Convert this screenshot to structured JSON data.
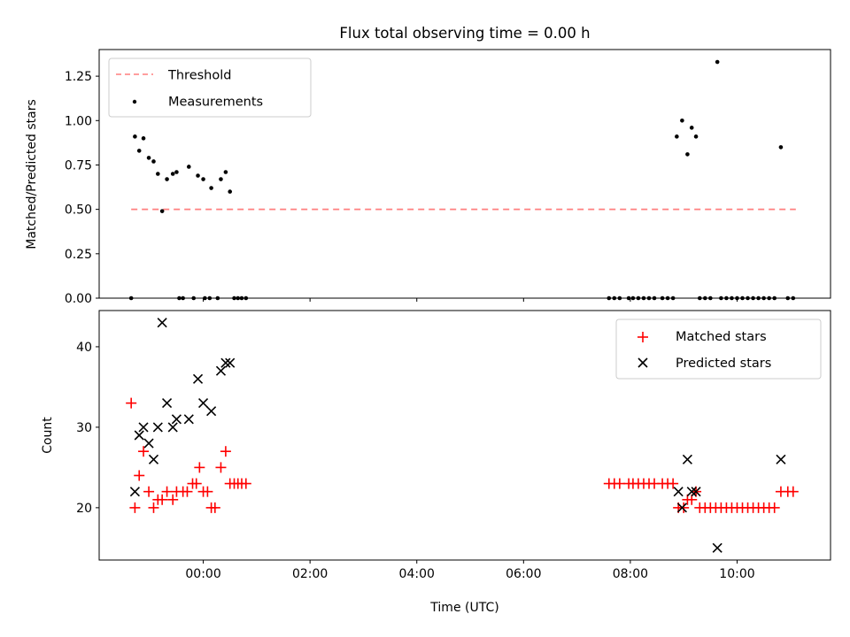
{
  "chart_data": [
    {
      "type": "scatter",
      "title": "Flux total observing time = 0.00 h",
      "xlabel": "",
      "ylabel": "Matched/Predicted stars",
      "xlim": [
        -1.95,
        11.75
      ],
      "ylim": [
        0,
        1.4
      ],
      "y_ticks": [
        "0.00",
        "0.25",
        "0.50",
        "0.75",
        "1.00",
        "1.25"
      ],
      "x_ticks": [
        "00:00",
        "02:00",
        "04:00",
        "06:00",
        "08:00",
        "10:00"
      ],
      "legend": {
        "position": "upper left",
        "entries": [
          "Threshold",
          "Measurements"
        ]
      },
      "threshold": {
        "name": "Threshold",
        "value": 0.5,
        "x_start": -1.35,
        "x_end": 11.1,
        "color": "#ff7f7f"
      },
      "series": [
        {
          "name": "Measurements",
          "color": "#000000",
          "points": [
            [
              -1.35,
              0.0
            ],
            [
              -1.28,
              0.91
            ],
            [
              -1.2,
              0.83
            ],
            [
              -1.12,
              0.9
            ],
            [
              -1.02,
              0.79
            ],
            [
              -0.93,
              0.77
            ],
            [
              -0.85,
              0.7
            ],
            [
              -0.77,
              0.49
            ],
            [
              -0.68,
              0.67
            ],
            [
              -0.57,
              0.7
            ],
            [
              -0.5,
              0.71
            ],
            [
              -0.45,
              0.0
            ],
            [
              -0.38,
              0.0
            ],
            [
              -0.27,
              0.74
            ],
            [
              -0.18,
              0.0
            ],
            [
              -0.1,
              0.69
            ],
            [
              0.0,
              0.67
            ],
            [
              0.03,
              0.0
            ],
            [
              0.12,
              0.0
            ],
            [
              0.15,
              0.62
            ],
            [
              0.27,
              0.0
            ],
            [
              0.33,
              0.67
            ],
            [
              0.42,
              0.71
            ],
            [
              0.5,
              0.6
            ],
            [
              0.58,
              0.0
            ],
            [
              0.65,
              0.0
            ],
            [
              0.72,
              0.0
            ],
            [
              0.8,
              0.0
            ],
            [
              7.6,
              0.0
            ],
            [
              7.7,
              0.0
            ],
            [
              7.8,
              0.0
            ],
            [
              7.97,
              0.0
            ],
            [
              8.05,
              0.0
            ],
            [
              8.15,
              0.0
            ],
            [
              8.25,
              0.0
            ],
            [
              8.35,
              0.0
            ],
            [
              8.45,
              0.0
            ],
            [
              8.6,
              0.0
            ],
            [
              8.7,
              0.0
            ],
            [
              8.8,
              0.0
            ],
            [
              8.87,
              0.91
            ],
            [
              8.97,
              1.0
            ],
            [
              9.07,
              0.81
            ],
            [
              9.15,
              0.96
            ],
            [
              9.23,
              0.91
            ],
            [
              9.3,
              0.0
            ],
            [
              9.4,
              0.0
            ],
            [
              9.5,
              0.0
            ],
            [
              9.63,
              1.33
            ],
            [
              9.7,
              0.0
            ],
            [
              9.8,
              0.0
            ],
            [
              9.9,
              0.0
            ],
            [
              10.0,
              0.0
            ],
            [
              10.1,
              0.0
            ],
            [
              10.2,
              0.0
            ],
            [
              10.3,
              0.0
            ],
            [
              10.4,
              0.0
            ],
            [
              10.5,
              0.0
            ],
            [
              10.6,
              0.0
            ],
            [
              10.7,
              0.0
            ],
            [
              10.82,
              0.85
            ],
            [
              10.95,
              0.0
            ],
            [
              11.05,
              0.0
            ]
          ]
        }
      ]
    },
    {
      "type": "scatter",
      "title": "",
      "xlabel": "Time (UTC)",
      "ylabel": "Count",
      "xlim": [
        -1.95,
        11.75
      ],
      "ylim": [
        13.5,
        44.5
      ],
      "y_ticks": [
        "20",
        "30",
        "40"
      ],
      "x_ticks": [
        "00:00",
        "02:00",
        "04:00",
        "06:00",
        "08:00",
        "10:00"
      ],
      "legend": {
        "position": "upper right",
        "entries": [
          "Matched stars",
          "Predicted stars"
        ]
      },
      "series": [
        {
          "name": "Matched stars",
          "marker": "plus",
          "color": "#ff0000",
          "points": [
            [
              -1.35,
              33
            ],
            [
              -1.28,
              20
            ],
            [
              -1.2,
              24
            ],
            [
              -1.12,
              27
            ],
            [
              -1.02,
              22
            ],
            [
              -0.93,
              20
            ],
            [
              -0.85,
              21
            ],
            [
              -0.77,
              21
            ],
            [
              -0.68,
              22
            ],
            [
              -0.57,
              21
            ],
            [
              -0.5,
              22
            ],
            [
              -0.38,
              22
            ],
            [
              -0.3,
              22
            ],
            [
              -0.2,
              23
            ],
            [
              -0.13,
              23
            ],
            [
              -0.07,
              25
            ],
            [
              0.0,
              22
            ],
            [
              0.08,
              22
            ],
            [
              0.15,
              20
            ],
            [
              0.22,
              20
            ],
            [
              0.33,
              25
            ],
            [
              0.42,
              27
            ],
            [
              0.5,
              23
            ],
            [
              0.58,
              23
            ],
            [
              0.65,
              23
            ],
            [
              0.72,
              23
            ],
            [
              0.8,
              23
            ],
            [
              7.6,
              23
            ],
            [
              7.7,
              23
            ],
            [
              7.8,
              23
            ],
            [
              7.97,
              23
            ],
            [
              8.05,
              23
            ],
            [
              8.15,
              23
            ],
            [
              8.25,
              23
            ],
            [
              8.35,
              23
            ],
            [
              8.45,
              23
            ],
            [
              8.6,
              23
            ],
            [
              8.7,
              23
            ],
            [
              8.8,
              23
            ],
            [
              8.9,
              20
            ],
            [
              9.0,
              20
            ],
            [
              9.07,
              21
            ],
            [
              9.15,
              21
            ],
            [
              9.23,
              22
            ],
            [
              9.3,
              20
            ],
            [
              9.4,
              20
            ],
            [
              9.5,
              20
            ],
            [
              9.6,
              20
            ],
            [
              9.7,
              20
            ],
            [
              9.8,
              20
            ],
            [
              9.9,
              20
            ],
            [
              10.0,
              20
            ],
            [
              10.1,
              20
            ],
            [
              10.2,
              20
            ],
            [
              10.3,
              20
            ],
            [
              10.4,
              20
            ],
            [
              10.5,
              20
            ],
            [
              10.6,
              20
            ],
            [
              10.7,
              20
            ],
            [
              10.82,
              22
            ],
            [
              10.95,
              22
            ],
            [
              11.05,
              22
            ]
          ]
        },
        {
          "name": "Predicted stars",
          "marker": "x",
          "color": "#000000",
          "points": [
            [
              -1.28,
              22
            ],
            [
              -1.2,
              29
            ],
            [
              -1.12,
              30
            ],
            [
              -1.02,
              28
            ],
            [
              -0.93,
              26
            ],
            [
              -0.85,
              30
            ],
            [
              -0.77,
              43
            ],
            [
              -0.68,
              33
            ],
            [
              -0.57,
              30
            ],
            [
              -0.5,
              31
            ],
            [
              -0.27,
              31
            ],
            [
              -0.1,
              36
            ],
            [
              0.0,
              33
            ],
            [
              0.15,
              32
            ],
            [
              0.33,
              37
            ],
            [
              0.42,
              38
            ],
            [
              0.5,
              38
            ],
            [
              8.9,
              22
            ],
            [
              8.97,
              20
            ],
            [
              9.07,
              26
            ],
            [
              9.15,
              22
            ],
            [
              9.23,
              22
            ],
            [
              9.63,
              15
            ],
            [
              10.82,
              26
            ]
          ]
        }
      ]
    }
  ]
}
